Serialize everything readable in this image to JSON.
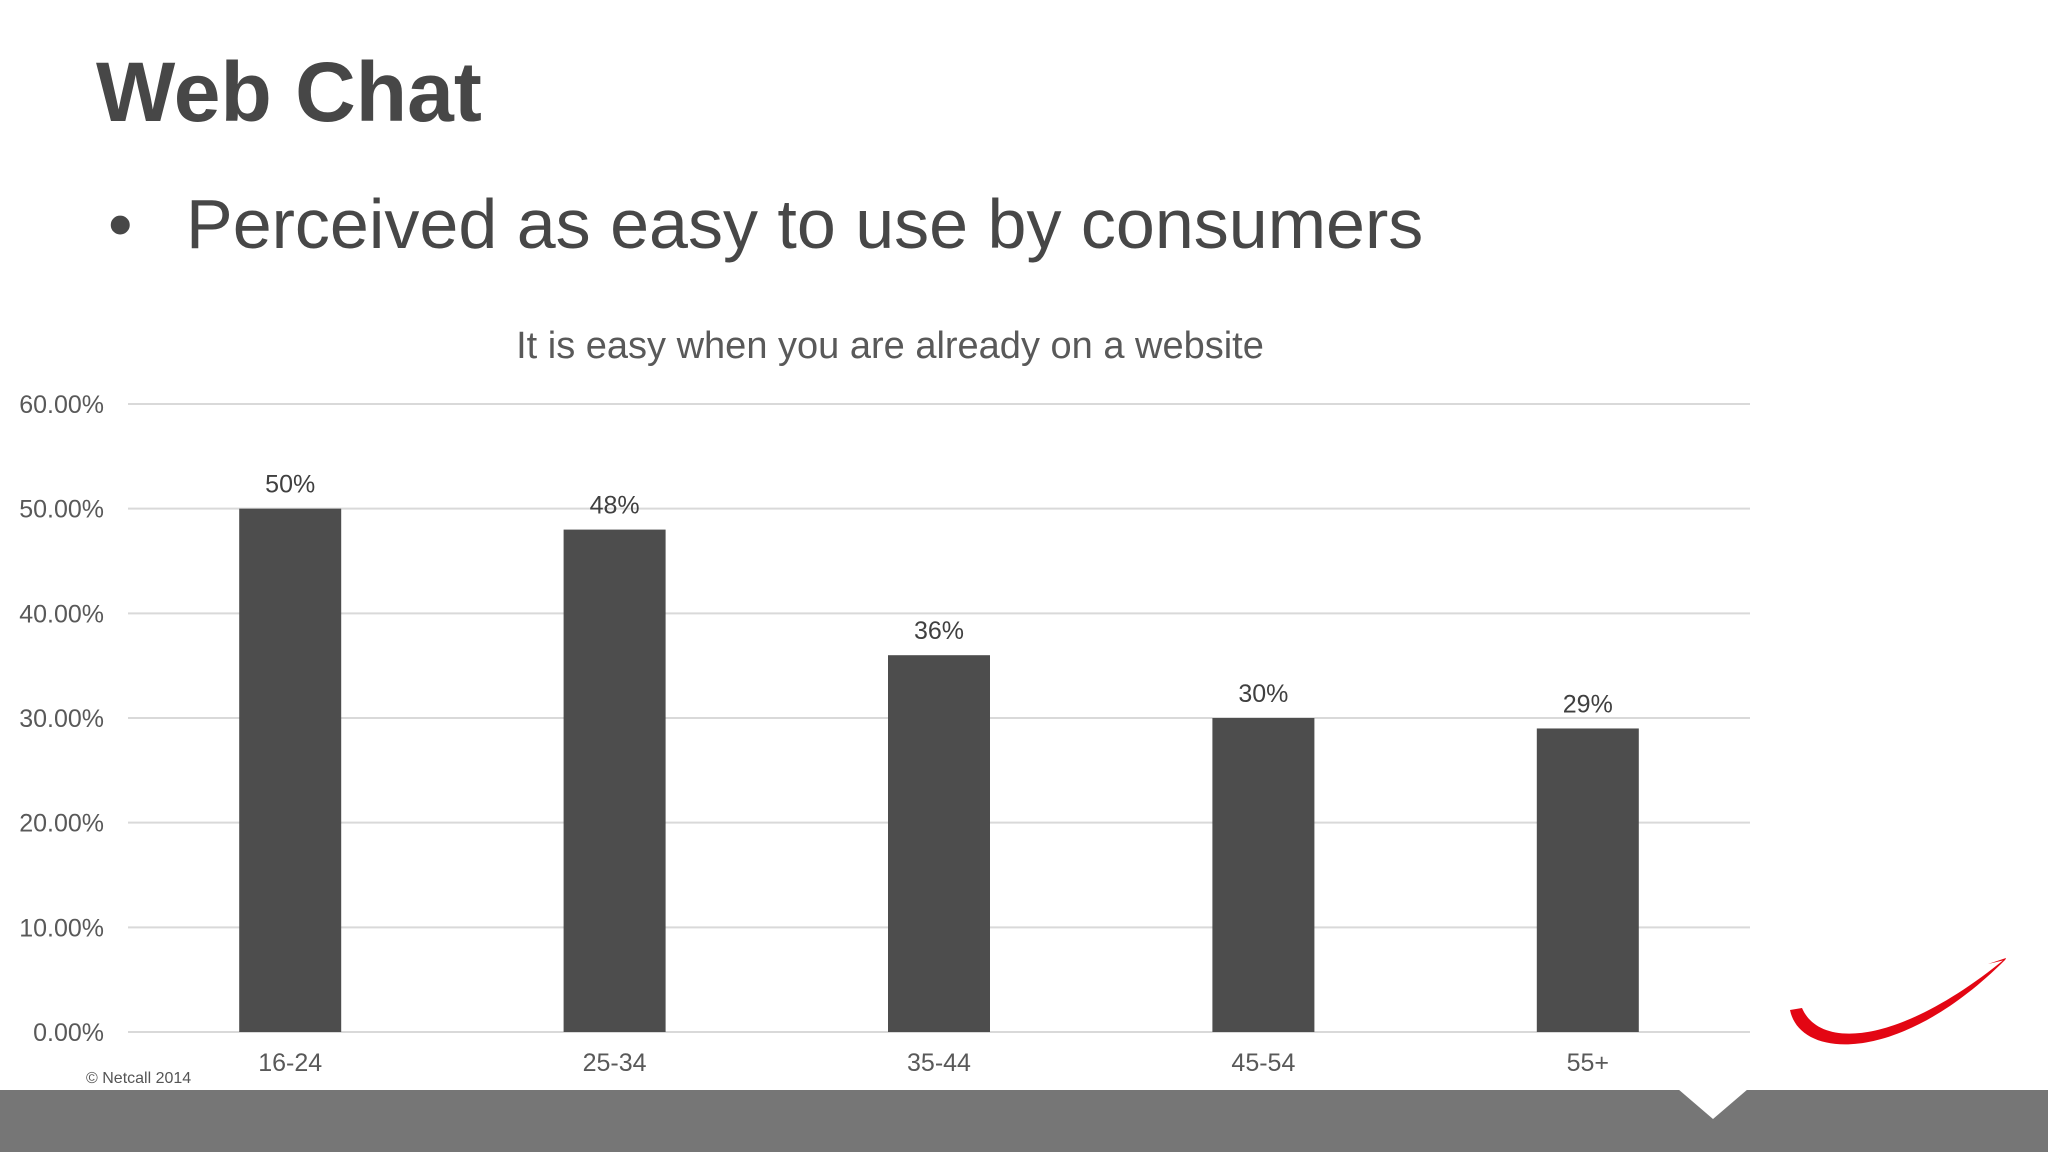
{
  "slide": {
    "title": "Web Chat",
    "bullet": "Perceived as easy to use by consumers",
    "copyright": "© Netcall 2014"
  },
  "colors": {
    "bar": "#4d4d4d",
    "gridline": "#d9d9d9",
    "footer": "#767676",
    "logo": "#e30613"
  },
  "chart_data": {
    "type": "bar",
    "title": "It is easy when you are already on a website",
    "categories": [
      "16-24",
      "25-34",
      "35-44",
      "45-54",
      "55+"
    ],
    "values": [
      50,
      48,
      36,
      30,
      29
    ],
    "data_labels": [
      "50%",
      "48%",
      "36%",
      "30%",
      "29%"
    ],
    "ylim": [
      0,
      60
    ],
    "yticks": [
      0,
      10,
      20,
      30,
      40,
      50,
      60
    ],
    "ytick_labels": [
      "0.00%",
      "10.00%",
      "20.00%",
      "30.00%",
      "40.00%",
      "50.00%",
      "60.00%"
    ],
    "xlabel": "",
    "ylabel": "",
    "grid": true,
    "legend": "none"
  }
}
